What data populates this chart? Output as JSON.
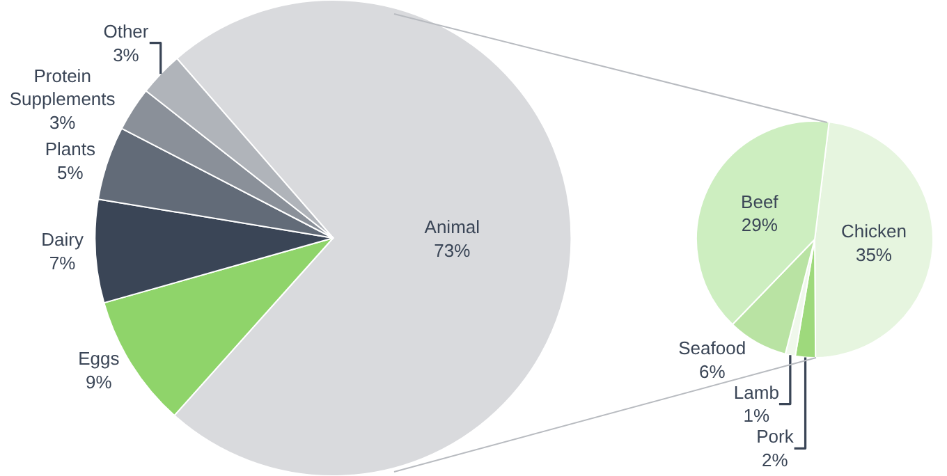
{
  "chart_data": [
    {
      "type": "pie",
      "categories": [
        "Animal",
        "Eggs",
        "Dairy",
        "Plants",
        "Protein Supplements",
        "Other"
      ],
      "values": [
        73,
        9,
        7,
        5,
        3,
        3
      ],
      "value_labels": [
        "73%",
        "9%",
        "7%",
        "5%",
        "3%",
        "3%"
      ],
      "colors": [
        "#d9dadd",
        "#8fd46a",
        "#3a4556",
        "#626b78",
        "#8a9099",
        "#b0b4ba"
      ]
    },
    {
      "type": "pie",
      "categories": [
        "Chicken",
        "Pork",
        "Lamb",
        "Seafood",
        "Beef"
      ],
      "values": [
        35,
        2,
        1,
        6,
        29
      ],
      "value_labels": [
        "35%",
        "2%",
        "1%",
        "6%",
        "29%"
      ],
      "colors": [
        "#e6f5df",
        "#9ed97c",
        "#f0f8ec",
        "#b9e3a3",
        "#cdeec0"
      ]
    }
  ]
}
